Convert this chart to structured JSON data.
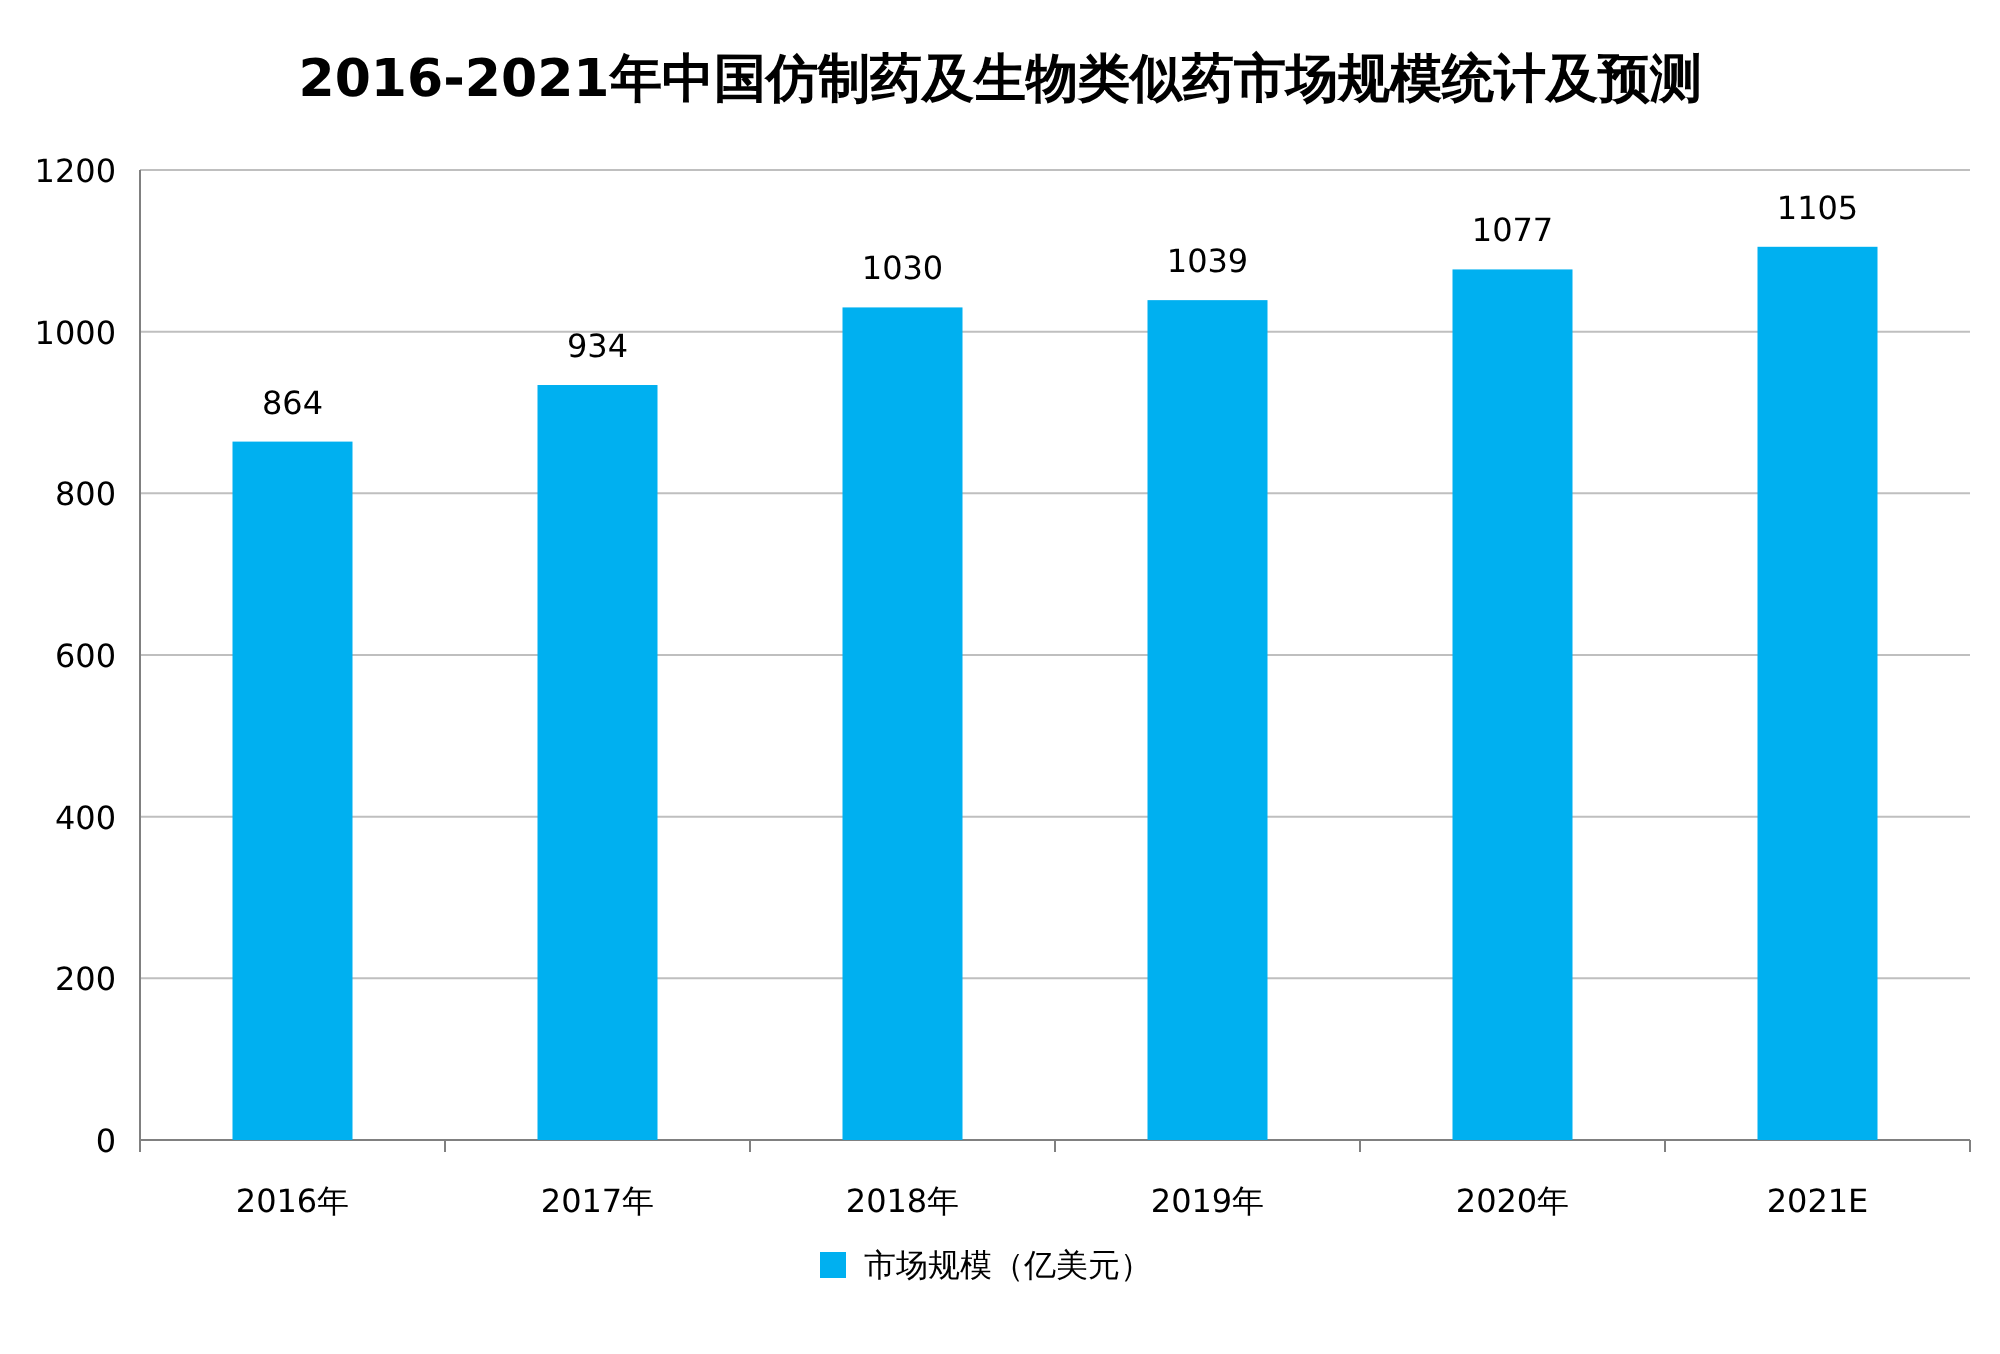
{
  "chart_data": {
    "type": "bar",
    "title": "2016-2021年中国仿制药及生物类似药市场规模统计及预测",
    "categories": [
      "2016年",
      "2017年",
      "2018年",
      "2019年",
      "2020年",
      "2021E"
    ],
    "series": [
      {
        "name": "市场规模（亿美元）",
        "color": "#00b0f0",
        "values": [
          864,
          934,
          1030,
          1039,
          1077,
          1105
        ]
      }
    ],
    "ylim": [
      0,
      1200
    ],
    "yticks": [
      0,
      200,
      400,
      600,
      800,
      1000,
      1200
    ],
    "grid": "y",
    "legend": "bottom",
    "data_labels": true
  }
}
